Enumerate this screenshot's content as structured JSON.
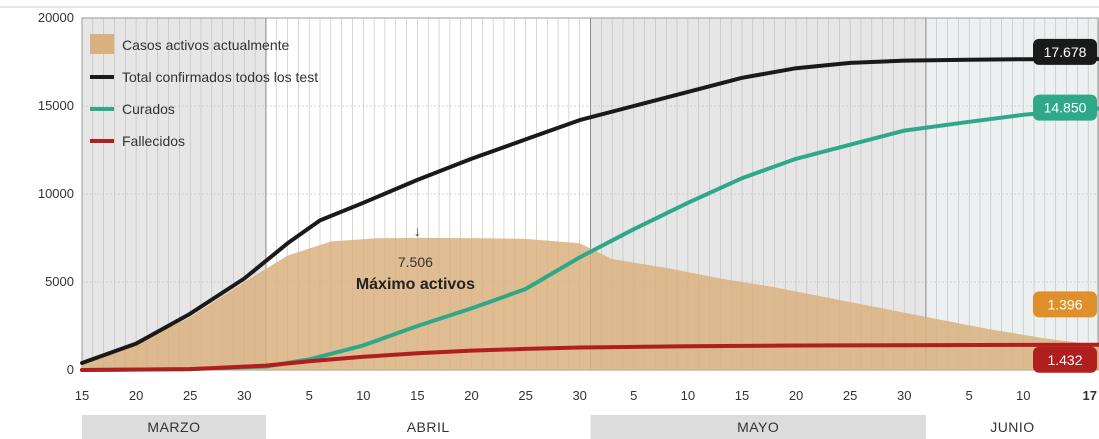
{
  "chart_data": {
    "type": "area",
    "title": "",
    "xlabel": "",
    "ylabel": "",
    "ylim": [
      0,
      20000
    ],
    "yticks": [
      0,
      5000,
      10000,
      15000,
      20000
    ],
    "ytick_labels": [
      "0",
      "5000",
      "10000",
      "15000",
      "20000"
    ],
    "xlim": [
      "2020-03-15",
      "2020-06-17"
    ],
    "xtick_labels": [
      "15",
      "20",
      "25",
      "30",
      "5",
      "10",
      "15",
      "20",
      "25",
      "30",
      "5",
      "10",
      "15",
      "20",
      "25",
      "30",
      "5",
      "10",
      "17"
    ],
    "xtick_dates": [
      "2020-03-15",
      "2020-03-20",
      "2020-03-25",
      "2020-03-30",
      "2020-04-05",
      "2020-04-10",
      "2020-04-15",
      "2020-04-20",
      "2020-04-25",
      "2020-04-30",
      "2020-05-05",
      "2020-05-10",
      "2020-05-15",
      "2020-05-20",
      "2020-05-25",
      "2020-05-30",
      "2020-06-05",
      "2020-06-10",
      "2020-06-17"
    ],
    "months": [
      {
        "label": "MARZO",
        "start": "2020-03-15",
        "end": "2020-03-31",
        "shaded": true
      },
      {
        "label": "ABRIL",
        "start": "2020-04-01",
        "end": "2020-04-30",
        "shaded": false
      },
      {
        "label": "MAYO",
        "start": "2020-05-01",
        "end": "2020-05-31",
        "shaded": true
      },
      {
        "label": "JUNIO",
        "start": "2020-06-01",
        "end": "2020-06-17",
        "shaded": false
      }
    ],
    "grid": true,
    "legend_position": "top-left",
    "series": [
      {
        "name": "Casos activos actualmente",
        "kind": "area",
        "color": "#d9b07e",
        "x": [
          "2020-03-15",
          "2020-03-20",
          "2020-03-25",
          "2020-03-30",
          "2020-04-03",
          "2020-04-07",
          "2020-04-11",
          "2020-04-15",
          "2020-04-20",
          "2020-04-25",
          "2020-04-30",
          "2020-05-03",
          "2020-05-08",
          "2020-05-13",
          "2020-05-18",
          "2020-05-23",
          "2020-05-28",
          "2020-06-02",
          "2020-06-07",
          "2020-06-12",
          "2020-06-17"
        ],
        "y": [
          400,
          1500,
          3000,
          5000,
          6500,
          7300,
          7480,
          7506,
          7490,
          7450,
          7200,
          6300,
          5800,
          5200,
          4700,
          4100,
          3500,
          2900,
          2300,
          1800,
          1396
        ]
      },
      {
        "name": "Total confirmados todos los test",
        "kind": "line",
        "color": "#1a1a1a",
        "x": [
          "2020-03-15",
          "2020-03-20",
          "2020-03-25",
          "2020-03-30",
          "2020-04-03",
          "2020-04-06",
          "2020-04-10",
          "2020-04-15",
          "2020-04-20",
          "2020-04-25",
          "2020-04-30",
          "2020-05-05",
          "2020-05-10",
          "2020-05-15",
          "2020-05-20",
          "2020-05-25",
          "2020-05-30",
          "2020-06-05",
          "2020-06-10",
          "2020-06-17"
        ],
        "y": [
          400,
          1500,
          3200,
          5200,
          7200,
          8500,
          9500,
          10800,
          12000,
          13100,
          14200,
          15000,
          15800,
          16600,
          17150,
          17450,
          17580,
          17630,
          17660,
          17678
        ]
      },
      {
        "name": "Curados",
        "kind": "line",
        "color": "#2fa88a",
        "x": [
          "2020-03-15",
          "2020-03-25",
          "2020-04-01",
          "2020-04-05",
          "2020-04-10",
          "2020-04-15",
          "2020-04-20",
          "2020-04-25",
          "2020-04-30",
          "2020-05-05",
          "2020-05-10",
          "2020-05-15",
          "2020-05-20",
          "2020-05-25",
          "2020-05-30",
          "2020-06-05",
          "2020-06-10",
          "2020-06-17"
        ],
        "y": [
          0,
          50,
          200,
          600,
          1400,
          2500,
          3500,
          4600,
          6400,
          8000,
          9500,
          10900,
          12000,
          12800,
          13600,
          14100,
          14500,
          14850
        ]
      },
      {
        "name": "Fallecidos",
        "kind": "line",
        "color": "#b01e1e",
        "x": [
          "2020-03-15",
          "2020-03-25",
          "2020-04-01",
          "2020-04-05",
          "2020-04-10",
          "2020-04-15",
          "2020-04-20",
          "2020-04-25",
          "2020-04-30",
          "2020-05-10",
          "2020-05-20",
          "2020-05-30",
          "2020-06-10",
          "2020-06-17"
        ],
        "y": [
          0,
          50,
          250,
          500,
          750,
          950,
          1100,
          1200,
          1280,
          1350,
          1390,
          1410,
          1425,
          1432
        ]
      }
    ],
    "badges": [
      {
        "text": "17.678",
        "series": "Total confirmados todos los test",
        "value": 17678,
        "color": "#1a1a1a"
      },
      {
        "text": "14.850",
        "series": "Curados",
        "value": 14850,
        "color": "#2fa88a"
      },
      {
        "text": "1.396",
        "series": "Casos activos actualmente",
        "value": 1396,
        "color": "#e0902a"
      },
      {
        "text": "1.432",
        "series": "Fallecidos",
        "value": 1432,
        "color": "#b01e1e"
      }
    ],
    "annotation": {
      "date": "2020-04-15",
      "value_text": "7.506",
      "label": "Máximo activos"
    }
  }
}
